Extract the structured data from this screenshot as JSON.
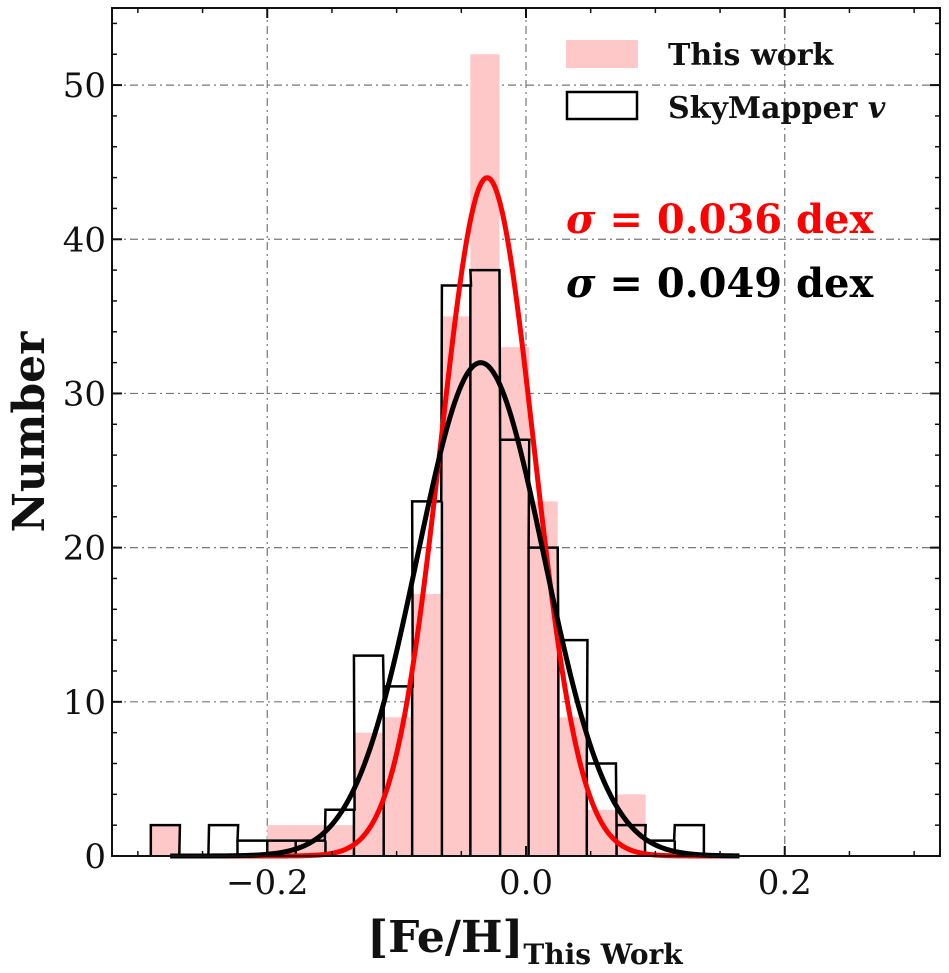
{
  "chart_data": {
    "type": "histogram",
    "title": "",
    "xlabel": "[Fe/H]",
    "xlabel_subscript": "This Work",
    "ylabel": "Number",
    "xlim": [
      -0.32,
      0.32
    ],
    "ylim": [
      0,
      55
    ],
    "xticks": [
      -0.2,
      0.0,
      0.2
    ],
    "xtick_labels": [
      "−0.2",
      "0.0",
      "0.2"
    ],
    "yticks": [
      0,
      10,
      20,
      30,
      40,
      50
    ],
    "ytick_labels": [
      "0",
      "10",
      "20",
      "30",
      "40",
      "50"
    ],
    "grid": true,
    "legend_position": "top-right",
    "series": [
      {
        "name": "This work",
        "kind": "filled",
        "color": "#ffc8c8",
        "bin_width": 0.0225,
        "bins": [
          {
            "x0": -0.29,
            "count": 2
          },
          {
            "x0": -0.2,
            "count": 2
          },
          {
            "x0": -0.178,
            "count": 2
          },
          {
            "x0": -0.155,
            "count": 2
          },
          {
            "x0": -0.133,
            "count": 8
          },
          {
            "x0": -0.11,
            "count": 9
          },
          {
            "x0": -0.088,
            "count": 17
          },
          {
            "x0": -0.065,
            "count": 35
          },
          {
            "x0": -0.043,
            "count": 52
          },
          {
            "x0": -0.02,
            "count": 33
          },
          {
            "x0": 0.002,
            "count": 23
          },
          {
            "x0": 0.025,
            "count": 9
          },
          {
            "x0": 0.047,
            "count": 3
          },
          {
            "x0": 0.07,
            "count": 4
          }
        ]
      },
      {
        "name": "SkyMapper v",
        "kind": "step",
        "color": "#000000",
        "bin_width": 0.0225,
        "bins": [
          {
            "x0": -0.29,
            "count": 2
          },
          {
            "x0": -0.268,
            "count": 0
          },
          {
            "x0": -0.245,
            "count": 2
          },
          {
            "x0": -0.223,
            "count": 1
          },
          {
            "x0": -0.2,
            "count": 1
          },
          {
            "x0": -0.178,
            "count": 1
          },
          {
            "x0": -0.155,
            "count": 3
          },
          {
            "x0": -0.133,
            "count": 13
          },
          {
            "x0": -0.11,
            "count": 11
          },
          {
            "x0": -0.088,
            "count": 23
          },
          {
            "x0": -0.065,
            "count": 37
          },
          {
            "x0": -0.043,
            "count": 38
          },
          {
            "x0": -0.02,
            "count": 27
          },
          {
            "x0": 0.002,
            "count": 20
          },
          {
            "x0": 0.025,
            "count": 14
          },
          {
            "x0": 0.047,
            "count": 6
          },
          {
            "x0": 0.07,
            "count": 2
          },
          {
            "x0": 0.092,
            "count": 1
          },
          {
            "x0": 0.115,
            "count": 2
          }
        ]
      }
    ],
    "fits": [
      {
        "name": "This work Gaussian fit",
        "color": "#ff0000",
        "amplitude": 44,
        "mean": -0.03,
        "sigma": 0.036
      },
      {
        "name": "SkyMapper v Gaussian fit",
        "color": "#000000",
        "amplitude": 32,
        "mean": -0.035,
        "sigma": 0.049
      }
    ],
    "annotations": [
      {
        "sigma_symbol": "σ",
        "text": " = 0.036 dex",
        "color": "#ff0000"
      },
      {
        "sigma_symbol": "σ",
        "text": " = 0.049 dex",
        "color": "#000000"
      }
    ]
  },
  "legend": {
    "items": [
      {
        "label": "This work",
        "style": "filled"
      },
      {
        "label": "SkyMapper",
        "label_italic": "v",
        "style": "outline"
      }
    ]
  }
}
